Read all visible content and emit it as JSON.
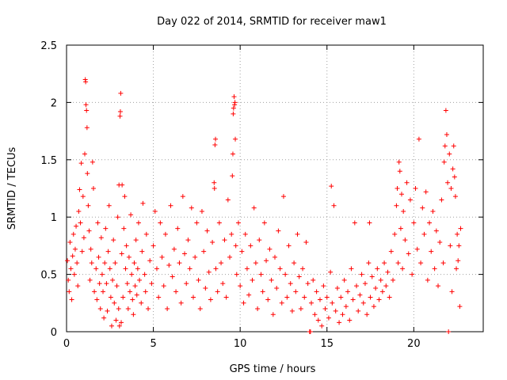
{
  "chart_data": {
    "type": "scatter",
    "title": "Day 022 of 2014, SRMTID for receiver maw1",
    "xlabel": "GPS time / hours",
    "ylabel": "SRMTID / TECUs",
    "xlim": [
      0,
      24
    ],
    "ylim": [
      0,
      2.5
    ],
    "xticks": [
      0,
      5,
      10,
      15,
      20
    ],
    "yticks": [
      0,
      0.5,
      1,
      1.5,
      2,
      2.5
    ],
    "xtick_labels": [
      "0",
      "5",
      "10",
      "15",
      "20"
    ],
    "ytick_labels": [
      "0",
      "0.5",
      "1",
      "1.5",
      "2",
      "2.5"
    ],
    "grid": true,
    "marker": "+",
    "color": "#ff0000",
    "series": [
      {
        "name": "SRMTID",
        "points": [
          [
            0.05,
            0.62
          ],
          [
            0.1,
            0.45
          ],
          [
            0.15,
            0.35
          ],
          [
            0.2,
            0.78
          ],
          [
            0.25,
            0.55
          ],
          [
            0.3,
            0.28
          ],
          [
            0.35,
            0.66
          ],
          [
            0.4,
            0.85
          ],
          [
            0.45,
            0.5
          ],
          [
            0.5,
            0.72
          ],
          [
            0.55,
            0.92
          ],
          [
            0.6,
            0.6
          ],
          [
            0.65,
            0.4
          ],
          [
            0.7,
            1.05
          ],
          [
            0.75,
            1.24
          ],
          [
            0.8,
            0.95
          ],
          [
            0.85,
            1.47
          ],
          [
            0.9,
            0.7
          ],
          [
            0.95,
            1.18
          ],
          [
            1.0,
            0.82
          ],
          [
            1.05,
            1.55
          ],
          [
            1.08,
            2.2
          ],
          [
            1.1,
            2.18
          ],
          [
            1.12,
            1.98
          ],
          [
            1.15,
            1.93
          ],
          [
            1.18,
            1.78
          ],
          [
            1.2,
            1.38
          ],
          [
            1.25,
            1.1
          ],
          [
            1.3,
            0.88
          ],
          [
            1.35,
            0.45
          ],
          [
            1.4,
            0.72
          ],
          [
            1.45,
            0.6
          ],
          [
            1.5,
            1.48
          ],
          [
            1.55,
            1.25
          ],
          [
            1.6,
            0.35
          ],
          [
            1.7,
            0.55
          ],
          [
            1.75,
            0.28
          ],
          [
            1.8,
            0.95
          ],
          [
            1.85,
            0.65
          ],
          [
            1.9,
            0.42
          ],
          [
            1.95,
            0.2
          ],
          [
            2.0,
            0.82
          ],
          [
            2.05,
            0.5
          ],
          [
            2.1,
            0.35
          ],
          [
            2.15,
            0.12
          ],
          [
            2.2,
            0.6
          ],
          [
            2.25,
            0.9
          ],
          [
            2.3,
            0.42
          ],
          [
            2.35,
            0.18
          ],
          [
            2.4,
            0.7
          ],
          [
            2.45,
            1.1
          ],
          [
            2.5,
            0.55
          ],
          [
            2.55,
            0.3
          ],
          [
            2.6,
            0.05
          ],
          [
            2.65,
            0.45
          ],
          [
            2.7,
            0.8
          ],
          [
            2.75,
            0.25
          ],
          [
            2.8,
            0.6
          ],
          [
            2.85,
            0.1
          ],
          [
            2.9,
            0.4
          ],
          [
            2.95,
            1.0
          ],
          [
            3.0,
            0.2
          ],
          [
            3.02,
            1.28
          ],
          [
            3.05,
            0.05
          ],
          [
            3.08,
            1.88
          ],
          [
            3.1,
            1.92
          ],
          [
            3.12,
            2.08
          ],
          [
            3.15,
            0.08
          ],
          [
            3.18,
            0.68
          ],
          [
            3.2,
            1.28
          ],
          [
            3.25,
            0.3
          ],
          [
            3.3,
            0.9
          ],
          [
            3.35,
            1.18
          ],
          [
            3.4,
            0.55
          ],
          [
            3.45,
            0.75
          ],
          [
            3.5,
            0.42
          ],
          [
            3.55,
            0.2
          ],
          [
            3.6,
            0.65
          ],
          [
            3.65,
            0.35
          ],
          [
            3.7,
            1.02
          ],
          [
            3.75,
            0.5
          ],
          [
            3.8,
            0.28
          ],
          [
            3.85,
            0.15
          ],
          [
            3.9,
            0.6
          ],
          [
            3.95,
            0.4
          ],
          [
            4.0,
            0.8
          ],
          [
            4.05,
            0.32
          ],
          [
            4.1,
            0.55
          ],
          [
            4.15,
            0.95
          ],
          [
            4.2,
            0.45
          ],
          [
            4.3,
            0.25
          ],
          [
            4.35,
            0.7
          ],
          [
            4.4,
            1.12
          ],
          [
            4.5,
            0.5
          ],
          [
            4.55,
            0.35
          ],
          [
            4.6,
            0.85
          ],
          [
            4.7,
            0.2
          ],
          [
            4.8,
            0.62
          ],
          [
            4.9,
            0.42
          ],
          [
            5.0,
            0.75
          ],
          [
            5.1,
            1.05
          ],
          [
            5.2,
            0.55
          ],
          [
            5.3,
            0.3
          ],
          [
            5.4,
            0.95
          ],
          [
            5.5,
            0.65
          ],
          [
            5.6,
            0.4
          ],
          [
            5.7,
            0.85
          ],
          [
            5.8,
            0.2
          ],
          [
            5.9,
            0.58
          ],
          [
            6.0,
            1.1
          ],
          [
            6.1,
            0.48
          ],
          [
            6.2,
            0.72
          ],
          [
            6.3,
            0.35
          ],
          [
            6.4,
            0.9
          ],
          [
            6.5,
            0.6
          ],
          [
            6.6,
            0.25
          ],
          [
            6.7,
            1.18
          ],
          [
            6.8,
            0.68
          ],
          [
            6.9,
            0.42
          ],
          [
            7.0,
            0.8
          ],
          [
            7.1,
            0.55
          ],
          [
            7.2,
            1.08
          ],
          [
            7.3,
            0.3
          ],
          [
            7.4,
            0.65
          ],
          [
            7.5,
            0.95
          ],
          [
            7.6,
            0.45
          ],
          [
            7.7,
            0.2
          ],
          [
            7.8,
            1.05
          ],
          [
            7.9,
            0.7
          ],
          [
            8.0,
            0.38
          ],
          [
            8.1,
            0.88
          ],
          [
            8.2,
            0.52
          ],
          [
            8.3,
            0.28
          ],
          [
            8.4,
            0.78
          ],
          [
            8.5,
            1.3
          ],
          [
            8.52,
            1.25
          ],
          [
            8.55,
            1.63
          ],
          [
            8.58,
            1.68
          ],
          [
            8.6,
            0.55
          ],
          [
            8.7,
            0.35
          ],
          [
            8.8,
            0.95
          ],
          [
            8.9,
            0.6
          ],
          [
            9.0,
            0.42
          ],
          [
            9.1,
            0.8
          ],
          [
            9.2,
            0.3
          ],
          [
            9.3,
            1.15
          ],
          [
            9.4,
            0.65
          ],
          [
            9.5,
            0.85
          ],
          [
            9.55,
            1.36
          ],
          [
            9.58,
            1.55
          ],
          [
            9.6,
            1.9
          ],
          [
            9.62,
            1.95
          ],
          [
            9.65,
            2.05
          ],
          [
            9.68,
            1.98
          ],
          [
            9.7,
            2.0
          ],
          [
            9.72,
            1.68
          ],
          [
            9.75,
            0.75
          ],
          [
            9.8,
            0.5
          ],
          [
            9.9,
            0.95
          ],
          [
            10.0,
            0.4
          ],
          [
            10.1,
            0.7
          ],
          [
            10.2,
            0.25
          ],
          [
            10.3,
            0.85
          ],
          [
            10.4,
            0.55
          ],
          [
            10.5,
            0.32
          ],
          [
            10.6,
            0.75
          ],
          [
            10.7,
            0.45
          ],
          [
            10.8,
            1.08
          ],
          [
            10.9,
            0.6
          ],
          [
            11.0,
            0.2
          ],
          [
            11.1,
            0.8
          ],
          [
            11.2,
            0.5
          ],
          [
            11.3,
            0.35
          ],
          [
            11.4,
            0.95
          ],
          [
            11.5,
            0.62
          ],
          [
            11.6,
            0.28
          ],
          [
            11.7,
            0.72
          ],
          [
            11.8,
            0.45
          ],
          [
            11.9,
            0.15
          ],
          [
            12.0,
            0.65
          ],
          [
            12.1,
            0.38
          ],
          [
            12.2,
            0.88
          ],
          [
            12.3,
            0.55
          ],
          [
            12.4,
            0.25
          ],
          [
            12.5,
            1.18
          ],
          [
            12.6,
            0.5
          ],
          [
            12.7,
            0.3
          ],
          [
            12.8,
            0.75
          ],
          [
            12.9,
            0.42
          ],
          [
            13.0,
            0.18
          ],
          [
            13.1,
            0.6
          ],
          [
            13.2,
            0.35
          ],
          [
            13.3,
            0.85
          ],
          [
            13.4,
            0.48
          ],
          [
            13.5,
            0.2
          ],
          [
            13.6,
            0.55
          ],
          [
            13.7,
            0.3
          ],
          [
            13.8,
            0.78
          ],
          [
            13.9,
            0.42
          ],
          [
            14.0,
            0.0
          ],
          [
            14.05,
            0.0
          ],
          [
            14.1,
            0.25
          ],
          [
            14.2,
            0.45
          ],
          [
            14.3,
            0.15
          ],
          [
            14.4,
            0.35
          ],
          [
            14.5,
            0.1
          ],
          [
            14.6,
            0.28
          ],
          [
            14.7,
            0.05
          ],
          [
            14.8,
            0.4
          ],
          [
            14.9,
            0.2
          ],
          [
            15.0,
            0.3
          ],
          [
            15.1,
            0.12
          ],
          [
            15.2,
            0.52
          ],
          [
            15.25,
            1.27
          ],
          [
            15.3,
            0.25
          ],
          [
            15.4,
            1.1
          ],
          [
            15.5,
            0.18
          ],
          [
            15.6,
            0.38
          ],
          [
            15.7,
            0.08
          ],
          [
            15.8,
            0.3
          ],
          [
            15.9,
            0.15
          ],
          [
            16.0,
            0.45
          ],
          [
            16.1,
            0.22
          ],
          [
            16.2,
            0.35
          ],
          [
            16.3,
            0.1
          ],
          [
            16.4,
            0.55
          ],
          [
            16.5,
            0.28
          ],
          [
            16.6,
            0.95
          ],
          [
            16.7,
            0.4
          ],
          [
            16.8,
            0.18
          ],
          [
            16.9,
            0.32
          ],
          [
            17.0,
            0.5
          ],
          [
            17.1,
            0.25
          ],
          [
            17.2,
            0.42
          ],
          [
            17.3,
            0.15
          ],
          [
            17.4,
            0.6
          ],
          [
            17.45,
            0.95
          ],
          [
            17.5,
            0.3
          ],
          [
            17.6,
            0.48
          ],
          [
            17.7,
            0.22
          ],
          [
            17.8,
            0.38
          ],
          [
            17.9,
            0.55
          ],
          [
            18.0,
            0.28
          ],
          [
            18.1,
            0.45
          ],
          [
            18.2,
            0.35
          ],
          [
            18.3,
            0.6
          ],
          [
            18.4,
            0.4
          ],
          [
            18.5,
            0.52
          ],
          [
            18.6,
            0.3
          ],
          [
            18.7,
            0.7
          ],
          [
            18.8,
            0.45
          ],
          [
            18.9,
            0.85
          ],
          [
            19.0,
            1.1
          ],
          [
            19.05,
            1.25
          ],
          [
            19.1,
            0.6
          ],
          [
            19.15,
            1.48
          ],
          [
            19.2,
            1.4
          ],
          [
            19.25,
            0.9
          ],
          [
            19.3,
            1.2
          ],
          [
            19.35,
            0.55
          ],
          [
            19.4,
            1.05
          ],
          [
            19.5,
            0.8
          ],
          [
            19.6,
            1.3
          ],
          [
            19.7,
            0.68
          ],
          [
            19.8,
            1.15
          ],
          [
            19.9,
            0.5
          ],
          [
            20.0,
            0.95
          ],
          [
            20.1,
            1.25
          ],
          [
            20.2,
            0.72
          ],
          [
            20.3,
            1.68
          ],
          [
            20.4,
            0.6
          ],
          [
            20.5,
            1.08
          ],
          [
            20.6,
            0.85
          ],
          [
            20.7,
            1.22
          ],
          [
            20.8,
            0.45
          ],
          [
            20.9,
            0.95
          ],
          [
            21.0,
            0.7
          ],
          [
            21.1,
            1.05
          ],
          [
            21.2,
            0.55
          ],
          [
            21.3,
            0.88
          ],
          [
            21.4,
            0.4
          ],
          [
            21.5,
            0.78
          ],
          [
            21.6,
            1.15
          ],
          [
            21.7,
            0.6
          ],
          [
            21.75,
            1.48
          ],
          [
            21.8,
            1.62
          ],
          [
            21.85,
            1.93
          ],
          [
            21.9,
            1.72
          ],
          [
            21.95,
            1.3
          ],
          [
            22.0,
            0.0
          ],
          [
            22.05,
            1.55
          ],
          [
            22.1,
            0.75
          ],
          [
            22.15,
            1.25
          ],
          [
            22.2,
            0.35
          ],
          [
            22.25,
            1.42
          ],
          [
            22.3,
            1.62
          ],
          [
            22.35,
            1.35
          ],
          [
            22.4,
            1.18
          ],
          [
            22.45,
            0.55
          ],
          [
            22.5,
            0.85
          ],
          [
            22.55,
            0.62
          ],
          [
            22.6,
            0.75
          ],
          [
            22.65,
            0.22
          ],
          [
            22.7,
            0.9
          ]
        ]
      }
    ]
  }
}
